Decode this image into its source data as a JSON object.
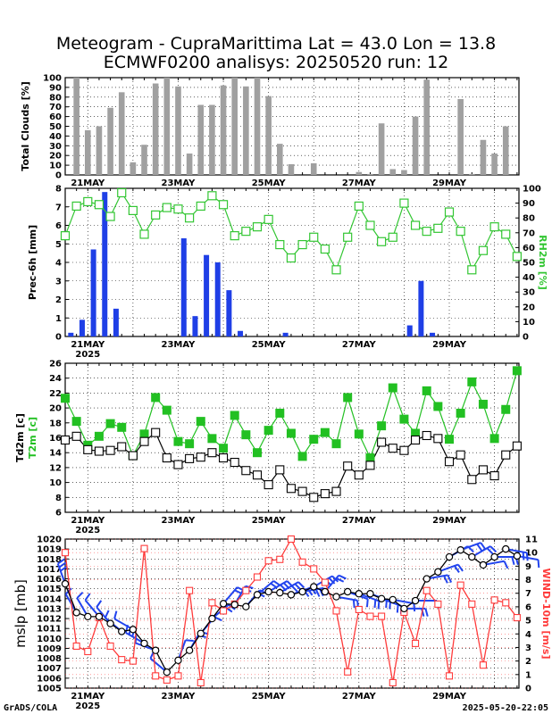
{
  "header": {
    "title_line1": "Meteogram - CupraMarittima Lat = 43.0 Lon = 13.8",
    "title_line2": "ECMWF0200 analisys: 20250520 run: 12"
  },
  "footer": {
    "left": "GrADS/COLA",
    "right": "2025-05-20-22:05"
  },
  "colors": {
    "clouds": "#a0a0a0",
    "precip": "#1f3fe6",
    "rh": "#33c633",
    "t2m": "#22c022",
    "td2m": "#000000",
    "mslp": "#000000",
    "wind_speed": "#ff3b3b",
    "wind_barb": "#2244ee"
  },
  "chart_data": [
    {
      "type": "bar",
      "name": "Total Clouds",
      "ylabel": "Total Clouds [%]",
      "ylim": [
        0,
        100
      ],
      "yticks": [
        0,
        10,
        20,
        30,
        40,
        50,
        60,
        70,
        80,
        90,
        100
      ],
      "x_tick_labels": [
        "21MAY",
        "23MAY",
        "25MAY",
        "27MAY",
        "29MAY"
      ],
      "grid": true,
      "values": [
        100,
        46,
        50,
        69,
        85,
        13,
        31,
        94,
        100,
        91,
        22,
        72,
        72,
        92,
        100,
        91,
        100,
        81,
        32,
        11,
        0,
        12,
        0,
        0,
        0,
        3,
        1,
        53,
        6,
        5,
        60,
        98,
        0,
        0,
        78,
        1,
        36,
        22,
        50
      ]
    },
    {
      "type": "bar+line",
      "name": "Precipitation and RH",
      "ylabel": "Prec-6h [mm]",
      "y2label": "RH2m [%]",
      "ylim": [
        0,
        8
      ],
      "yticks": [
        0,
        1,
        2,
        3,
        4,
        5,
        6,
        7,
        8
      ],
      "y2lim": [
        0,
        100
      ],
      "y2ticks": [
        0,
        10,
        20,
        30,
        40,
        50,
        60,
        70,
        80,
        90,
        100
      ],
      "x_tick_labels": [
        "21MAY",
        "23MAY",
        "25MAY",
        "27MAY",
        "29MAY"
      ],
      "year_label": "2025",
      "grid": true,
      "series": [
        {
          "name": "Prec-6h",
          "values": [
            0.2,
            0.9,
            4.7,
            7.8,
            1.5,
            0,
            0,
            0,
            0,
            0,
            5.3,
            1.1,
            4.4,
            4.0,
            2.5,
            0.3,
            0,
            0,
            0,
            0.2,
            0,
            0,
            0,
            0,
            0,
            0,
            0,
            0,
            0,
            0,
            0.6,
            3.0,
            0.2,
            0,
            0,
            0,
            0,
            0,
            0,
            0
          ]
        },
        {
          "name": "RH2m",
          "values": [
            68,
            88,
            91,
            89,
            81,
            97,
            85,
            69,
            82,
            87,
            86,
            80,
            88,
            95,
            89,
            68,
            71,
            74,
            79,
            62,
            53,
            62,
            67,
            59,
            45,
            67,
            88,
            75,
            64,
            67,
            90,
            75,
            71,
            73,
            84,
            71,
            45,
            58,
            74,
            69,
            54
          ]
        }
      ]
    },
    {
      "type": "line",
      "name": "Temperature",
      "ylabel": "Td2m [c]",
      "ylabel2": "T2m [c]",
      "ylim": [
        6,
        26
      ],
      "yticks": [
        6,
        8,
        10,
        12,
        14,
        16,
        18,
        20,
        22,
        24,
        26
      ],
      "x_tick_labels": [
        "21MAY",
        "23MAY",
        "25MAY",
        "27MAY",
        "29MAY"
      ],
      "year_label": "2025",
      "grid": true,
      "series": [
        {
          "name": "T2m",
          "values": [
            21.3,
            18.2,
            15.0,
            16.2,
            17.9,
            17.4,
            13.6,
            16.5,
            21.4,
            19.7,
            15.5,
            15.2,
            18.2,
            15.9,
            14.6,
            19.0,
            16.4,
            14.0,
            17.0,
            19.3,
            16.6,
            13.5,
            15.8,
            16.7,
            15.2,
            21.4,
            16.5,
            13.3,
            17.6,
            22.7,
            18.5,
            16.6,
            22.3,
            20.2,
            15.8,
            19.3,
            23.5,
            20.5,
            15.9,
            19.8,
            25.0
          ]
        },
        {
          "name": "Td2m",
          "values": [
            15.7,
            16.2,
            14.4,
            14.2,
            14.3,
            14.8,
            13.6,
            15.5,
            16.7,
            13.3,
            12.4,
            13.2,
            13.4,
            14.0,
            13.3,
            12.7,
            11.6,
            11.0,
            9.7,
            11.7,
            9.2,
            8.8,
            8.0,
            8.5,
            8.8,
            12.2,
            11.0,
            12.3,
            15.4,
            14.6,
            14.3,
            15.7,
            16.3,
            15.9,
            12.8,
            13.7,
            10.4,
            11.7,
            10.9,
            13.7,
            14.9
          ]
        }
      ]
    },
    {
      "type": "line",
      "name": "Pressure and wind",
      "ylabel": "mslp [mb]",
      "y2label": "WIND-10m [m/s]",
      "ylim": [
        1005,
        1020
      ],
      "yticks": [
        1005,
        1006,
        1007,
        1008,
        1009,
        1010,
        1011,
        1012,
        1013,
        1014,
        1015,
        1016,
        1017,
        1018,
        1019,
        1020
      ],
      "y2lim": [
        0,
        11
      ],
      "y2ticks": [
        0,
        1,
        2,
        3,
        4,
        5,
        6,
        7,
        8,
        9,
        10,
        11
      ],
      "x_tick_labels": [
        "21MAY",
        "23MAY",
        "25MAY",
        "27MAY",
        "29MAY"
      ],
      "year_label": "2025",
      "grid": true,
      "series": [
        {
          "name": "mslp",
          "values": [
            1015.5,
            1012.6,
            1012.2,
            1012.2,
            1011.5,
            1010.7,
            1010.9,
            1009.5,
            1008.8,
            1006.6,
            1007.8,
            1008.8,
            1010.5,
            1012.0,
            1013.5,
            1013.4,
            1013.2,
            1014.4,
            1014.7,
            1014.6,
            1014.4,
            1014.7,
            1015.2,
            1014.7,
            1014.2,
            1014.7,
            1014.5,
            1014.5,
            1014.0,
            1013.9,
            1013.0,
            1013.8,
            1016.0,
            1016.7,
            1018.2,
            1018.9,
            1018.2,
            1017.4,
            1018.2,
            1019.0,
            1018.3
          ]
        },
        {
          "name": "wind_speed",
          "values": [
            10,
            3.1,
            2.7,
            5.2,
            3.1,
            2.1,
            2.0,
            10.3,
            0.9,
            0.6,
            0.9,
            7.2,
            0.4,
            6.3,
            5.7,
            6.2,
            7.2,
            8.2,
            9.4,
            9.5,
            11.0,
            9.3,
            8.8,
            7.8,
            5.7,
            1.2,
            5.8,
            5.3,
            5.3,
            0.4,
            5.6,
            3.3,
            7.2,
            6.2,
            0.9,
            7.6,
            6.2,
            1.7,
            6.5,
            6.3,
            5.2
          ]
        },
        {
          "name": "wind_barb_direction_deg",
          "values": [
            340,
            330,
            330,
            320,
            320,
            310,
            300,
            300,
            290,
            310,
            20,
            30,
            40,
            50,
            40,
            30,
            40,
            50,
            60,
            60,
            70,
            80,
            60,
            40,
            100,
            110,
            110,
            110,
            110,
            100,
            90,
            90,
            80,
            70,
            60,
            70,
            60,
            80,
            90,
            100,
            100
          ]
        }
      ]
    }
  ]
}
